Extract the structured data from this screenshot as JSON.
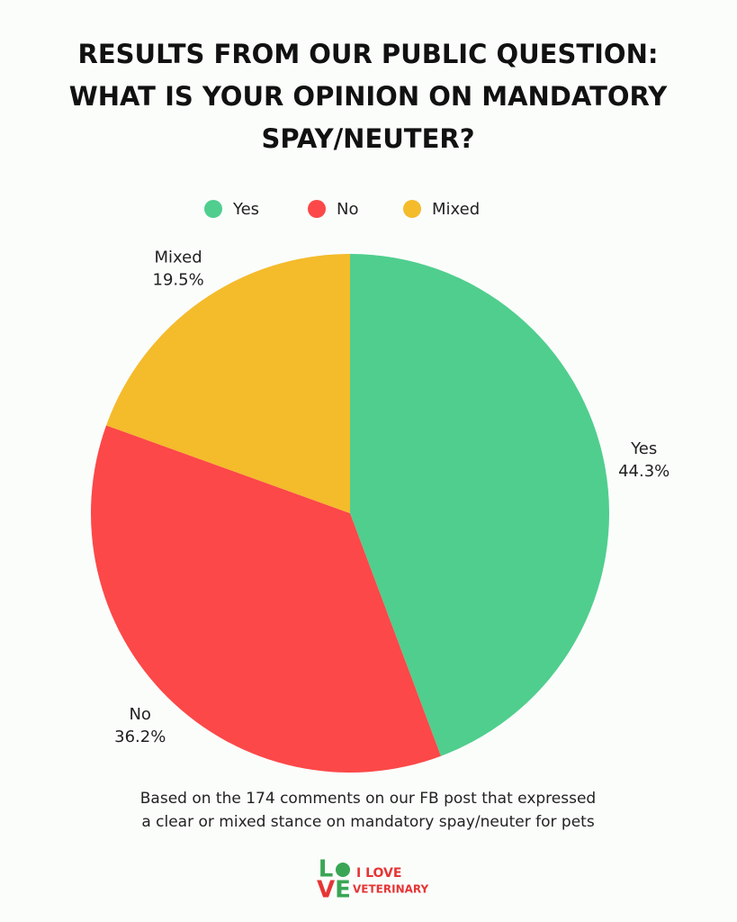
{
  "chart_data": {
    "type": "pie",
    "title": [
      "RESULTS FROM OUR PUBLIC QUESTION:",
      "WHAT IS YOUR OPINION ON MANDATORY",
      "SPAY/NEUTER?"
    ],
    "categories": [
      "Yes",
      "No",
      "Mixed"
    ],
    "values": [
      44.3,
      36.2,
      19.5
    ],
    "value_labels": [
      "44.3%",
      "36.2%",
      "19.5%"
    ],
    "colors": [
      "#50ce8e",
      "#fc4848",
      "#f4bb2b"
    ],
    "legend": "top",
    "footnote": [
      "Based on the 174 comments on our FB post that expressed",
      "a clear or mixed stance on mandatory spay/neuter for pets"
    ]
  },
  "logo": {
    "letters": [
      "L",
      "V",
      "E"
    ],
    "text": [
      "I LOVE",
      "VETERINARY"
    ]
  }
}
